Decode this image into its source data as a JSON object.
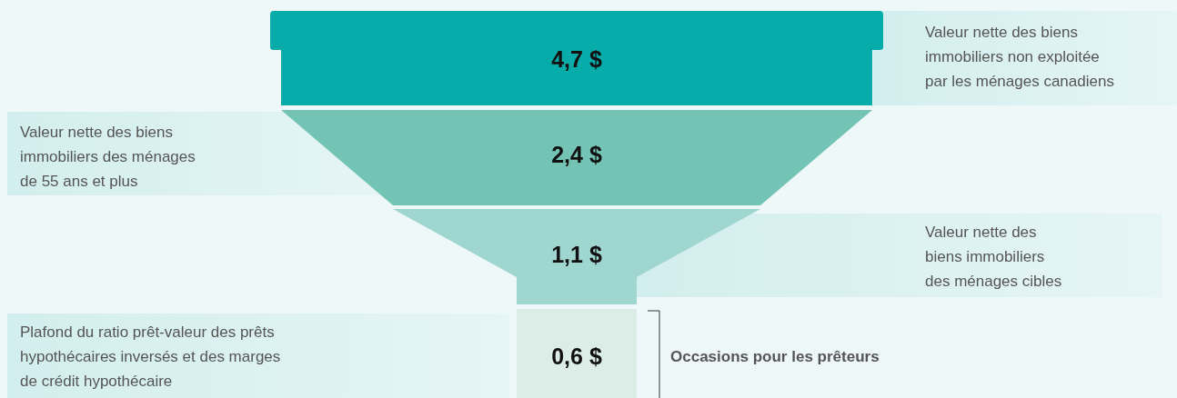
{
  "chart_data": {
    "type": "other",
    "categories": [
      "Valeur nette des biens immobiliers non exploitée par les ménages canadiens",
      "Valeur nette des biens immobiliers des ménages de 55 ans et plus",
      "Valeur nette des biens immobiliers des ménages cibles",
      "Plafond du ratio prêt-valeur des prêts hypothécaires inversés et des marges de crédit hypothécaire"
    ],
    "values": [
      4.7,
      2.4,
      1.1,
      0.6
    ],
    "value_labels": [
      "4,7 $",
      "2,4 $",
      "1,1 $",
      "0,6 $"
    ],
    "colors": [
      "#05aca9",
      "#74c4b5",
      "#a0d6d0",
      "#dbede6"
    ],
    "annotations": [
      "Occasions pour les prêteurs"
    ]
  }
}
